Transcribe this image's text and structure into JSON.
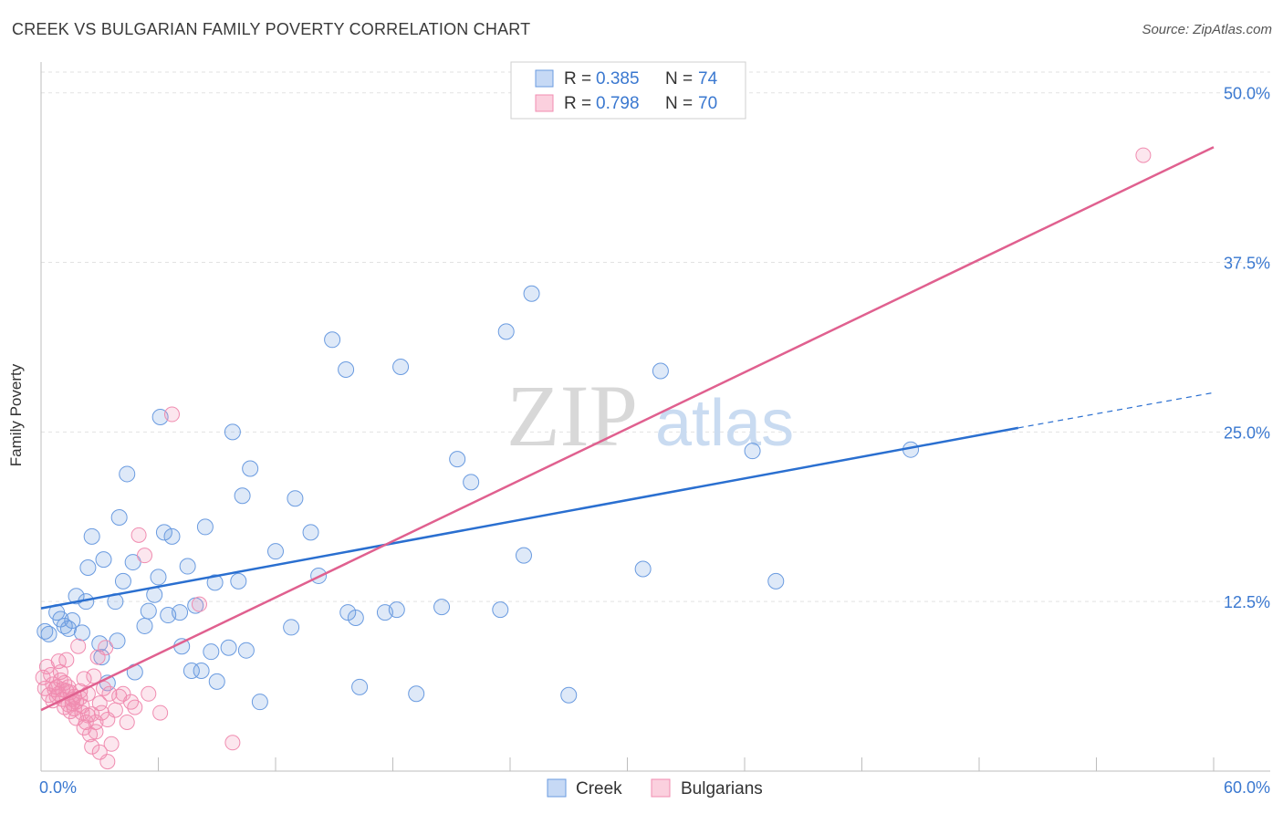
{
  "title": "CREEK VS BULGARIAN FAMILY POVERTY CORRELATION CHART",
  "source": "Source: ZipAtlas.com",
  "watermark": {
    "zip": "ZIP",
    "atlas": "atlas"
  },
  "colors": {
    "creek": "#6a9be0",
    "creek_line": "#2a6fd0",
    "bulgarians": "#f08cb0",
    "bulgarians_line": "#e0608f",
    "axis_text": "#3a78d0"
  },
  "chart_data": {
    "type": "scatter",
    "title": "CREEK VS BULGARIAN FAMILY POVERTY CORRELATION CHART",
    "xlabel": "",
    "ylabel": "Family Poverty",
    "xlim": [
      0,
      60
    ],
    "ylim": [
      0,
      52
    ],
    "x_tick_labels": {
      "min": "0.0%",
      "max": "60.0%"
    },
    "y_ticks": [
      12.5,
      25.0,
      37.5,
      50.0
    ],
    "y_tick_labels": [
      "12.5%",
      "25.0%",
      "37.5%",
      "50.0%"
    ],
    "legend": {
      "position": "top-center",
      "entries": [
        {
          "r_label": "R = ",
          "r_value": "0.385",
          "n_label": "N = ",
          "n_value": "74"
        },
        {
          "r_label": "R = ",
          "r_value": "0.798",
          "n_label": "N = ",
          "n_value": "70"
        }
      ]
    },
    "bottom_legend": [
      "Creek",
      "Bulgarians"
    ],
    "series": [
      {
        "name": "Creek",
        "trend": {
          "x0": 0,
          "y0": 12.0,
          "x1": 50,
          "y1": 25.3,
          "dash_to_x": 60,
          "dash_to_y": 27.9
        },
        "points": [
          [
            0.2,
            10.3
          ],
          [
            0.4,
            10.1
          ],
          [
            0.8,
            11.7
          ],
          [
            1.0,
            11.2
          ],
          [
            1.2,
            10.7
          ],
          [
            1.6,
            11.1
          ],
          [
            1.4,
            10.5
          ],
          [
            1.8,
            12.9
          ],
          [
            2.1,
            10.2
          ],
          [
            2.3,
            12.5
          ],
          [
            2.4,
            15.0
          ],
          [
            2.6,
            17.3
          ],
          [
            3.0,
            9.4
          ],
          [
            3.1,
            8.4
          ],
          [
            3.2,
            15.6
          ],
          [
            3.4,
            6.5
          ],
          [
            3.8,
            12.5
          ],
          [
            3.9,
            9.6
          ],
          [
            4.0,
            18.7
          ],
          [
            4.2,
            14.0
          ],
          [
            4.4,
            21.9
          ],
          [
            4.7,
            15.4
          ],
          [
            4.8,
            7.3
          ],
          [
            5.3,
            10.7
          ],
          [
            5.5,
            11.8
          ],
          [
            5.8,
            13.0
          ],
          [
            6.0,
            14.3
          ],
          [
            6.1,
            26.1
          ],
          [
            6.3,
            17.6
          ],
          [
            6.5,
            11.5
          ],
          [
            6.7,
            17.3
          ],
          [
            7.1,
            11.7
          ],
          [
            7.2,
            9.2
          ],
          [
            7.5,
            15.1
          ],
          [
            7.7,
            7.4
          ],
          [
            7.9,
            12.2
          ],
          [
            8.2,
            7.4
          ],
          [
            8.4,
            18.0
          ],
          [
            8.7,
            8.8
          ],
          [
            8.9,
            13.9
          ],
          [
            9.0,
            6.6
          ],
          [
            9.6,
            9.1
          ],
          [
            9.8,
            25.0
          ],
          [
            10.1,
            14.0
          ],
          [
            10.3,
            20.3
          ],
          [
            10.5,
            8.9
          ],
          [
            10.7,
            22.3
          ],
          [
            11.2,
            5.1
          ],
          [
            12.0,
            16.2
          ],
          [
            12.8,
            10.6
          ],
          [
            13.0,
            20.1
          ],
          [
            13.8,
            17.6
          ],
          [
            14.2,
            14.4
          ],
          [
            14.9,
            31.8
          ],
          [
            15.6,
            29.6
          ],
          [
            15.7,
            11.7
          ],
          [
            16.1,
            11.3
          ],
          [
            16.3,
            6.2
          ],
          [
            17.6,
            11.7
          ],
          [
            18.2,
            11.9
          ],
          [
            18.4,
            29.8
          ],
          [
            19.2,
            5.7
          ],
          [
            20.5,
            12.1
          ],
          [
            21.3,
            23.0
          ],
          [
            22.0,
            21.3
          ],
          [
            23.5,
            11.9
          ],
          [
            23.8,
            32.4
          ],
          [
            24.7,
            15.9
          ],
          [
            25.1,
            35.2
          ],
          [
            27.0,
            5.6
          ],
          [
            30.8,
            14.9
          ],
          [
            31.7,
            29.5
          ],
          [
            36.4,
            23.6
          ],
          [
            37.6,
            14.0
          ],
          [
            44.5,
            23.7
          ]
        ]
      },
      {
        "name": "Bulgarians",
        "trend": {
          "x0": 0,
          "y0": 4.5,
          "x1": 60,
          "y1": 46.0
        },
        "points": [
          [
            0.1,
            6.9
          ],
          [
            0.2,
            6.1
          ],
          [
            0.3,
            7.7
          ],
          [
            0.4,
            5.6
          ],
          [
            0.5,
            7.1
          ],
          [
            0.6,
            6.4
          ],
          [
            0.7,
            6.0
          ],
          [
            0.8,
            5.5
          ],
          [
            0.9,
            8.1
          ],
          [
            1.0,
            6.7
          ],
          [
            1.1,
            5.3
          ],
          [
            1.2,
            4.7
          ],
          [
            1.3,
            8.2
          ],
          [
            1.4,
            6.2
          ],
          [
            1.5,
            5.8
          ],
          [
            1.6,
            5.0
          ],
          [
            1.7,
            4.6
          ],
          [
            1.8,
            3.9
          ],
          [
            1.9,
            9.2
          ],
          [
            2.0,
            5.4
          ],
          [
            2.1,
            4.3
          ],
          [
            2.2,
            6.8
          ],
          [
            2.3,
            3.6
          ],
          [
            2.4,
            5.7
          ],
          [
            2.5,
            2.7
          ],
          [
            2.6,
            4.2
          ],
          [
            2.7,
            7.0
          ],
          [
            2.8,
            3.6
          ],
          [
            2.9,
            8.4
          ],
          [
            3.0,
            5.0
          ],
          [
            3.1,
            4.3
          ],
          [
            3.2,
            6.1
          ],
          [
            3.3,
            9.1
          ],
          [
            3.4,
            3.8
          ],
          [
            3.5,
            5.7
          ],
          [
            3.6,
            2.0
          ],
          [
            3.8,
            4.5
          ],
          [
            4.0,
            5.5
          ],
          [
            4.2,
            5.7
          ],
          [
            4.4,
            3.6
          ],
          [
            4.6,
            5.1
          ],
          [
            4.8,
            4.7
          ],
          [
            5.0,
            17.4
          ],
          [
            5.3,
            15.9
          ],
          [
            5.5,
            5.7
          ],
          [
            6.1,
            4.3
          ],
          [
            6.7,
            26.3
          ],
          [
            8.1,
            12.3
          ],
          [
            9.8,
            2.1
          ],
          [
            56.4,
            45.4
          ],
          [
            0.8,
            6.2
          ],
          [
            1.2,
            6.5
          ],
          [
            1.6,
            5.3
          ],
          [
            2.0,
            5.9
          ],
          [
            2.4,
            4.1
          ],
          [
            1.0,
            7.3
          ],
          [
            1.4,
            4.9
          ],
          [
            1.8,
            5.1
          ],
          [
            2.2,
            3.2
          ],
          [
            2.6,
            1.8
          ],
          [
            3.0,
            1.4
          ],
          [
            3.4,
            0.7
          ],
          [
            2.8,
            2.9
          ],
          [
            1.5,
            4.4
          ],
          [
            0.9,
            5.7
          ],
          [
            1.1,
            6.0
          ],
          [
            1.3,
            5.9
          ],
          [
            1.7,
            5.5
          ],
          [
            2.1,
            4.8
          ],
          [
            0.6,
            5.2
          ]
        ]
      }
    ]
  }
}
